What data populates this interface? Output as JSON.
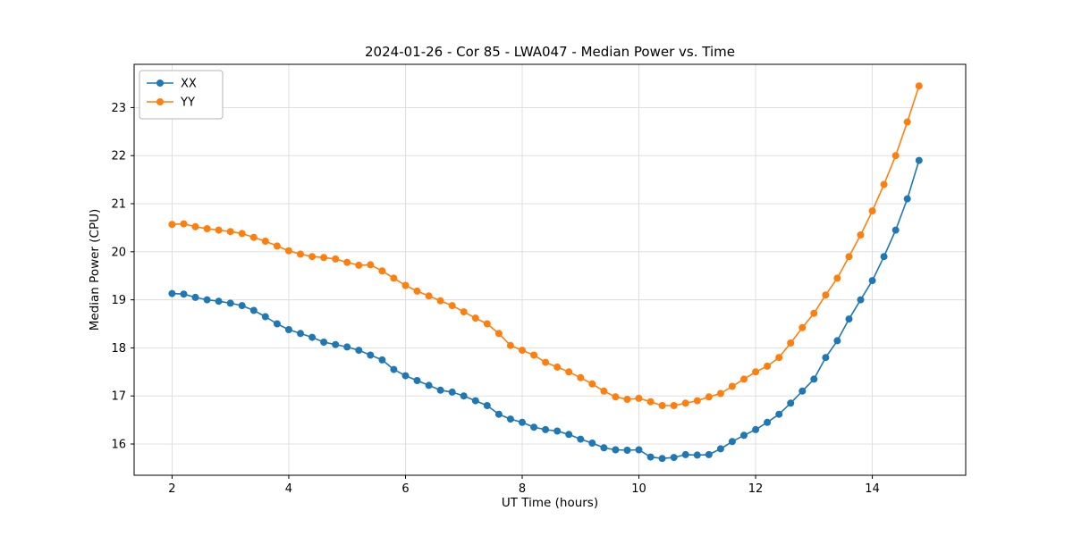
{
  "chart_data": {
    "type": "line",
    "title": "2024-01-26 - Cor 85 - LWA047 - Median Power vs. Time",
    "xlabel": "UT Time (hours)",
    "ylabel": "Median Power (CPU)",
    "xlim": [
      1.35,
      15.6
    ],
    "ylim": [
      15.35,
      23.9
    ],
    "xticks": [
      2,
      4,
      6,
      8,
      10,
      12,
      14
    ],
    "yticks": [
      16,
      17,
      18,
      19,
      20,
      21,
      22,
      23
    ],
    "grid": true,
    "legend_position": "upper left",
    "marker": "o",
    "x": [
      2.0,
      2.2,
      2.4,
      2.6,
      2.8,
      3.0,
      3.2,
      3.4,
      3.6,
      3.8,
      4.0,
      4.2,
      4.4,
      4.6,
      4.8,
      5.0,
      5.2,
      5.4,
      5.6,
      5.8,
      6.0,
      6.2,
      6.4,
      6.6,
      6.8,
      7.0,
      7.2,
      7.4,
      7.6,
      7.8,
      8.0,
      8.2,
      8.4,
      8.6,
      8.8,
      9.0,
      9.2,
      9.4,
      9.6,
      9.8,
      10.0,
      10.2,
      10.4,
      10.6,
      10.8,
      11.0,
      11.2,
      11.4,
      11.6,
      11.8,
      12.0,
      12.2,
      12.4,
      12.6,
      12.8,
      13.0,
      13.2,
      13.4,
      13.6,
      13.8,
      14.0,
      14.2,
      14.4,
      14.6,
      14.8
    ],
    "series": [
      {
        "name": "XX",
        "color": "#1f77b4",
        "values": [
          19.13,
          19.12,
          19.05,
          19.0,
          18.97,
          18.93,
          18.88,
          18.78,
          18.65,
          18.5,
          18.38,
          18.3,
          18.22,
          18.12,
          18.07,
          18.02,
          17.95,
          17.85,
          17.75,
          17.55,
          17.42,
          17.32,
          17.22,
          17.12,
          17.08,
          17.0,
          16.9,
          16.8,
          16.62,
          16.52,
          16.45,
          16.35,
          16.3,
          16.27,
          16.2,
          16.1,
          16.02,
          15.92,
          15.88,
          15.87,
          15.88,
          15.73,
          15.7,
          15.72,
          15.78,
          15.77,
          15.78,
          15.9,
          16.05,
          16.18,
          16.3,
          16.45,
          16.62,
          16.85,
          17.1,
          17.35,
          17.8,
          18.15,
          18.6,
          19.0,
          19.4,
          19.9,
          20.45,
          21.1,
          21.9
        ]
      },
      {
        "name": "YY",
        "color": "#ff7f0e",
        "values": [
          20.57,
          20.58,
          20.52,
          20.48,
          20.45,
          20.42,
          20.38,
          20.3,
          20.22,
          20.12,
          20.02,
          19.95,
          19.9,
          19.88,
          19.85,
          19.78,
          19.72,
          19.73,
          19.6,
          19.45,
          19.3,
          19.18,
          19.08,
          18.98,
          18.88,
          18.75,
          18.62,
          18.5,
          18.3,
          18.05,
          17.95,
          17.85,
          17.7,
          17.6,
          17.5,
          17.38,
          17.25,
          17.1,
          16.98,
          16.93,
          16.95,
          16.88,
          16.8,
          16.8,
          16.85,
          16.9,
          16.98,
          17.05,
          17.2,
          17.35,
          17.5,
          17.62,
          17.8,
          18.1,
          18.42,
          18.72,
          19.1,
          19.45,
          19.9,
          20.35,
          20.85,
          21.4,
          22.0,
          22.7,
          23.45
        ]
      }
    ]
  }
}
